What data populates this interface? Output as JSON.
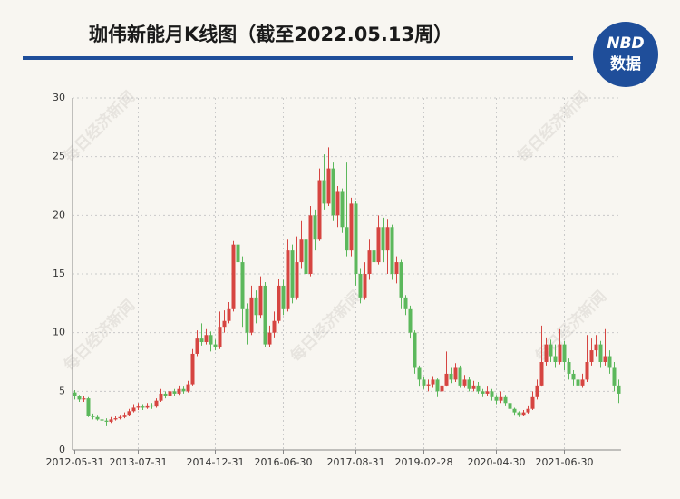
{
  "chart_data": {
    "type": "candlestick",
    "title": "珈伟新能月K线图（截至2022.05.13周）",
    "logo": {
      "top": "NBD",
      "bottom": "数据"
    },
    "watermark": "每日经济新闻",
    "up_color": "#d64541",
    "down_color": "#5cb85c",
    "ylim": [
      0,
      30
    ],
    "yticks": [
      0,
      5,
      10,
      15,
      20,
      25,
      30
    ],
    "grid": true,
    "categories": [
      "2012-05-31",
      null,
      null,
      null,
      null,
      null,
      null,
      null,
      null,
      null,
      null,
      null,
      null,
      null,
      "2013-07-31",
      null,
      null,
      null,
      null,
      null,
      null,
      null,
      null,
      null,
      null,
      null,
      null,
      null,
      null,
      null,
      null,
      "2014-12-31",
      null,
      null,
      null,
      null,
      null,
      null,
      null,
      null,
      null,
      null,
      null,
      null,
      null,
      null,
      "2016-06-30",
      null,
      null,
      null,
      null,
      null,
      null,
      null,
      null,
      null,
      null,
      null,
      null,
      null,
      null,
      null,
      "2017-08-31",
      null,
      null,
      null,
      null,
      null,
      null,
      null,
      null,
      null,
      null,
      null,
      null,
      null,
      null,
      "2019-02-28",
      null,
      null,
      null,
      null,
      null,
      null,
      null,
      null,
      null,
      null,
      null,
      null,
      null,
      null,
      null,
      "2020-04-30",
      null,
      null,
      null,
      null,
      null,
      null,
      null,
      null,
      null,
      null,
      null,
      null,
      null,
      null,
      "2021-06-30",
      null,
      null,
      null,
      null,
      null,
      null,
      null,
      null,
      null,
      null,
      null,
      null
    ],
    "open": [
      4.9,
      4.6,
      4.3,
      4.4,
      2.9,
      2.8,
      2.6,
      2.5,
      2.4,
      2.6,
      2.7,
      2.8,
      3.0,
      3.3,
      3.6,
      3.7,
      3.6,
      3.8,
      3.7,
      4.2,
      4.8,
      4.6,
      5.0,
      4.8,
      5.2,
      5.0,
      5.6,
      8.2,
      9.5,
      9.2,
      9.8,
      9.0,
      8.8,
      10.5,
      11.0,
      12.0,
      17.5,
      16.0,
      12.0,
      10.0,
      13.0,
      11.5,
      14.0,
      9.0,
      10.0,
      11.0,
      14.0,
      12.0,
      17.0,
      13.0,
      16.0,
      18.0,
      15.0,
      20.0,
      18.0,
      23.0,
      21.0,
      24.0,
      20.0,
      22.0,
      19.0,
      17.0,
      21.0,
      15.0,
      13.0,
      15.0,
      17.0,
      16.0,
      19.0,
      17.0,
      19.0,
      15.0,
      16.0,
      13.0,
      12.0,
      10.0,
      7.0,
      6.0,
      5.5,
      5.6,
      6.0,
      5.0,
      5.5,
      6.5,
      6.0,
      7.0,
      5.5,
      6.0,
      5.2,
      5.5,
      5.0,
      4.8,
      5.0,
      4.5,
      4.2,
      4.5,
      4.0,
      3.5,
      3.2,
      3.0,
      3.2,
      3.5,
      4.5,
      5.5,
      7.5,
      9.0,
      8.0,
      7.5,
      9.0,
      7.5,
      6.5,
      6.0,
      5.5,
      6.0,
      7.5,
      8.5,
      9.0,
      7.5,
      8.0,
      7.0,
      5.5
    ],
    "high": [
      5.1,
      4.7,
      4.6,
      4.5,
      3.1,
      3.0,
      2.8,
      2.7,
      2.8,
      2.9,
      3.0,
      3.2,
      3.5,
      3.9,
      4.0,
      3.9,
      4.0,
      4.0,
      4.4,
      5.2,
      5.0,
      5.3,
      5.2,
      5.5,
      5.4,
      5.9,
      8.6,
      10.2,
      10.8,
      10.3,
      10.1,
      9.4,
      11.8,
      11.9,
      12.6,
      17.8,
      19.6,
      16.5,
      12.5,
      14.0,
      13.6,
      14.8,
      14.3,
      10.6,
      11.8,
      14.6,
      14.5,
      18.0,
      17.5,
      18.2,
      19.5,
      18.5,
      20.8,
      20.5,
      24.0,
      25.2,
      25.8,
      24.5,
      22.5,
      22.3,
      24.5,
      21.5,
      21.2,
      15.5,
      16.0,
      18.0,
      22.0,
      20.0,
      19.8,
      19.7,
      19.2,
      16.5,
      16.2,
      13.2,
      12.3,
      10.2,
      7.2,
      6.2,
      6.0,
      6.3,
      6.1,
      6.0,
      8.4,
      7.0,
      7.4,
      7.2,
      6.4,
      6.2,
      5.9,
      5.8,
      5.2,
      5.4,
      5.2,
      4.7,
      5.0,
      4.7,
      4.2,
      3.6,
      3.3,
      3.4,
      3.8,
      5.0,
      6.0,
      10.6,
      9.6,
      9.4,
      9.0,
      10.3,
      9.3,
      7.8,
      6.8,
      6.3,
      6.5,
      9.8,
      9.5,
      9.8,
      9.3,
      10.3,
      8.5,
      7.5,
      6.0
    ],
    "low": [
      4.3,
      4.1,
      4.1,
      2.8,
      2.6,
      2.5,
      2.3,
      2.1,
      2.3,
      2.5,
      2.6,
      2.7,
      2.9,
      3.2,
      3.4,
      3.4,
      3.5,
      3.5,
      3.6,
      4.1,
      4.4,
      4.5,
      4.6,
      4.7,
      4.8,
      4.9,
      5.5,
      8.0,
      8.9,
      9.0,
      8.4,
      8.5,
      8.6,
      10.0,
      10.8,
      11.8,
      15.5,
      10.5,
      9.0,
      9.8,
      10.8,
      11.2,
      8.8,
      8.8,
      9.6,
      10.8,
      11.5,
      11.8,
      12.5,
      12.8,
      15.5,
      14.5,
      14.8,
      17.0,
      17.8,
      20.5,
      20.8,
      19.5,
      19.0,
      18.5,
      16.5,
      16.5,
      14.0,
      12.5,
      12.8,
      14.5,
      15.5,
      15.8,
      16.0,
      15.0,
      14.5,
      14.2,
      12.0,
      11.5,
      9.5,
      6.5,
      5.4,
      5.2,
      5.0,
      5.3,
      4.5,
      4.8,
      5.4,
      5.7,
      5.8,
      5.3,
      5.3,
      5.0,
      5.0,
      4.8,
      4.5,
      4.6,
      4.2,
      3.9,
      4.0,
      3.8,
      3.3,
      3.0,
      2.8,
      2.9,
      3.1,
      3.4,
      4.3,
      5.4,
      7.2,
      7.5,
      7.0,
      7.3,
      6.8,
      6.0,
      5.5,
      5.2,
      5.3,
      5.8,
      7.2,
      8.0,
      7.0,
      7.2,
      6.5,
      5.0,
      4.0
    ],
    "close": [
      4.6,
      4.3,
      4.4,
      2.9,
      2.8,
      2.6,
      2.5,
      2.4,
      2.6,
      2.7,
      2.8,
      3.0,
      3.3,
      3.6,
      3.7,
      3.6,
      3.8,
      3.7,
      4.2,
      4.8,
      4.6,
      5.0,
      4.8,
      5.2,
      5.0,
      5.6,
      8.2,
      9.5,
      9.2,
      9.8,
      9.0,
      8.8,
      10.5,
      11.0,
      12.0,
      17.5,
      16.0,
      12.0,
      10.0,
      13.0,
      11.5,
      14.0,
      9.0,
      10.0,
      11.0,
      14.0,
      12.0,
      17.0,
      13.0,
      16.0,
      18.0,
      15.0,
      20.0,
      18.0,
      23.0,
      21.0,
      24.0,
      20.0,
      22.0,
      19.0,
      17.0,
      21.0,
      15.0,
      13.0,
      15.0,
      17.0,
      16.0,
      19.0,
      17.0,
      19.0,
      15.0,
      16.0,
      13.0,
      12.0,
      10.0,
      7.0,
      6.0,
      5.5,
      5.6,
      6.0,
      5.0,
      5.5,
      6.5,
      6.0,
      7.0,
      5.5,
      6.0,
      5.2,
      5.5,
      5.0,
      4.8,
      5.0,
      4.5,
      4.2,
      4.5,
      4.0,
      3.5,
      3.2,
      3.0,
      3.2,
      3.5,
      4.5,
      5.5,
      7.5,
      9.0,
      8.0,
      7.5,
      9.0,
      7.5,
      6.5,
      6.0,
      5.5,
      6.0,
      7.5,
      8.5,
      9.0,
      7.5,
      8.0,
      7.0,
      5.5,
      4.8
    ]
  }
}
